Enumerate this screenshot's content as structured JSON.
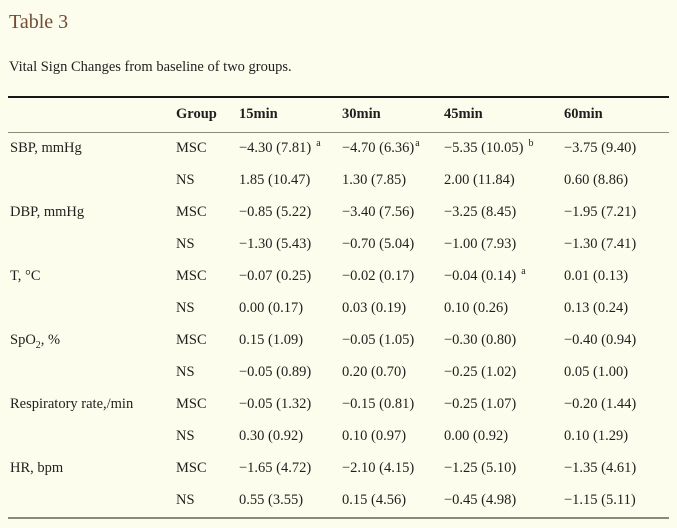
{
  "page": {
    "background_color": "#fdfdee",
    "accent_color": "#734d33",
    "text_color": "#1f1f1f",
    "rule_dark_color": "#171717",
    "rule_light_color": "#8d8a7b"
  },
  "header": {
    "title": "Table 3",
    "caption": "Vital Sign Changes from baseline of two groups."
  },
  "table": {
    "columns": [
      "",
      "Group",
      "15min",
      "30min",
      "45min",
      "60min"
    ],
    "rows": [
      {
        "label": "SBP, mmHg",
        "group": "MSC",
        "cells": [
          {
            "value": "−4.30 (7.81)",
            "sup": "a",
            "spaced": true
          },
          {
            "value": "−4.70 (6.36)",
            "sup": "a",
            "spaced": false
          },
          {
            "value": "−5.35 (10.05)",
            "sup": "b",
            "spaced": true
          },
          {
            "value": "−3.75 (9.40)"
          }
        ]
      },
      {
        "label": "",
        "group": "NS",
        "cells": [
          {
            "value": "1.85 (10.47)"
          },
          {
            "value": "1.30 (7.85)"
          },
          {
            "value": "2.00 (11.84)"
          },
          {
            "value": "0.60 (8.86)"
          }
        ]
      },
      {
        "label": "DBP, mmHg",
        "group": "MSC",
        "cells": [
          {
            "value": "−0.85 (5.22)"
          },
          {
            "value": "−3.40 (7.56)"
          },
          {
            "value": "−3.25 (8.45)"
          },
          {
            "value": "−1.95 (7.21)"
          }
        ]
      },
      {
        "label": "",
        "group": "NS",
        "cells": [
          {
            "value": "−1.30 (5.43)"
          },
          {
            "value": "−0.70 (5.04)"
          },
          {
            "value": "−1.00 (7.93)"
          },
          {
            "value": "−1.30 (7.41)"
          }
        ]
      },
      {
        "label": "T, °C",
        "group": "MSC",
        "cells": [
          {
            "value": "−0.07 (0.25)"
          },
          {
            "value": "−0.02 (0.17)"
          },
          {
            "value": "−0.04 (0.14)",
            "sup": "a",
            "spaced": true
          },
          {
            "value": "0.01 (0.13)"
          }
        ]
      },
      {
        "label": "",
        "group": "NS",
        "cells": [
          {
            "value": "0.00 (0.17)"
          },
          {
            "value": "0.03 (0.19)"
          },
          {
            "value": "0.10 (0.26)"
          },
          {
            "value": "0.13 (0.24)"
          }
        ]
      },
      {
        "label": "SpO₂, %",
        "group": "MSC",
        "cells": [
          {
            "value": "0.15 (1.09)"
          },
          {
            "value": "−0.05 (1.05)"
          },
          {
            "value": "−0.30 (0.80)"
          },
          {
            "value": "−0.40 (0.94)"
          }
        ]
      },
      {
        "label": "",
        "group": "NS",
        "cells": [
          {
            "value": "−0.05 (0.89)"
          },
          {
            "value": "0.20 (0.70)"
          },
          {
            "value": "−0.25 (1.02)"
          },
          {
            "value": "0.05 (1.00)"
          }
        ]
      },
      {
        "label": "Respiratory rate,/min",
        "group": "MSC",
        "cells": [
          {
            "value": "−0.05 (1.32)"
          },
          {
            "value": "−0.15 (0.81)"
          },
          {
            "value": "−0.25 (1.07)"
          },
          {
            "value": "−0.20 (1.44)"
          }
        ]
      },
      {
        "label": "",
        "group": "NS",
        "cells": [
          {
            "value": "0.30 (0.92)"
          },
          {
            "value": "0.10 (0.97)"
          },
          {
            "value": "0.00 (0.92)"
          },
          {
            "value": "0.10 (1.29)"
          }
        ]
      },
      {
        "label": "HR, bpm",
        "group": "MSC",
        "cells": [
          {
            "value": "−1.65 (4.72)"
          },
          {
            "value": "−2.10 (4.15)"
          },
          {
            "value": "−1.25 (5.10)"
          },
          {
            "value": "−1.35 (4.61)"
          }
        ]
      },
      {
        "label": "",
        "group": "NS",
        "cells": [
          {
            "value": "0.55 (3.55)"
          },
          {
            "value": "0.15 (4.56)"
          },
          {
            "value": "−0.45 (4.98)"
          },
          {
            "value": "−1.15 (5.11)"
          }
        ]
      }
    ]
  }
}
